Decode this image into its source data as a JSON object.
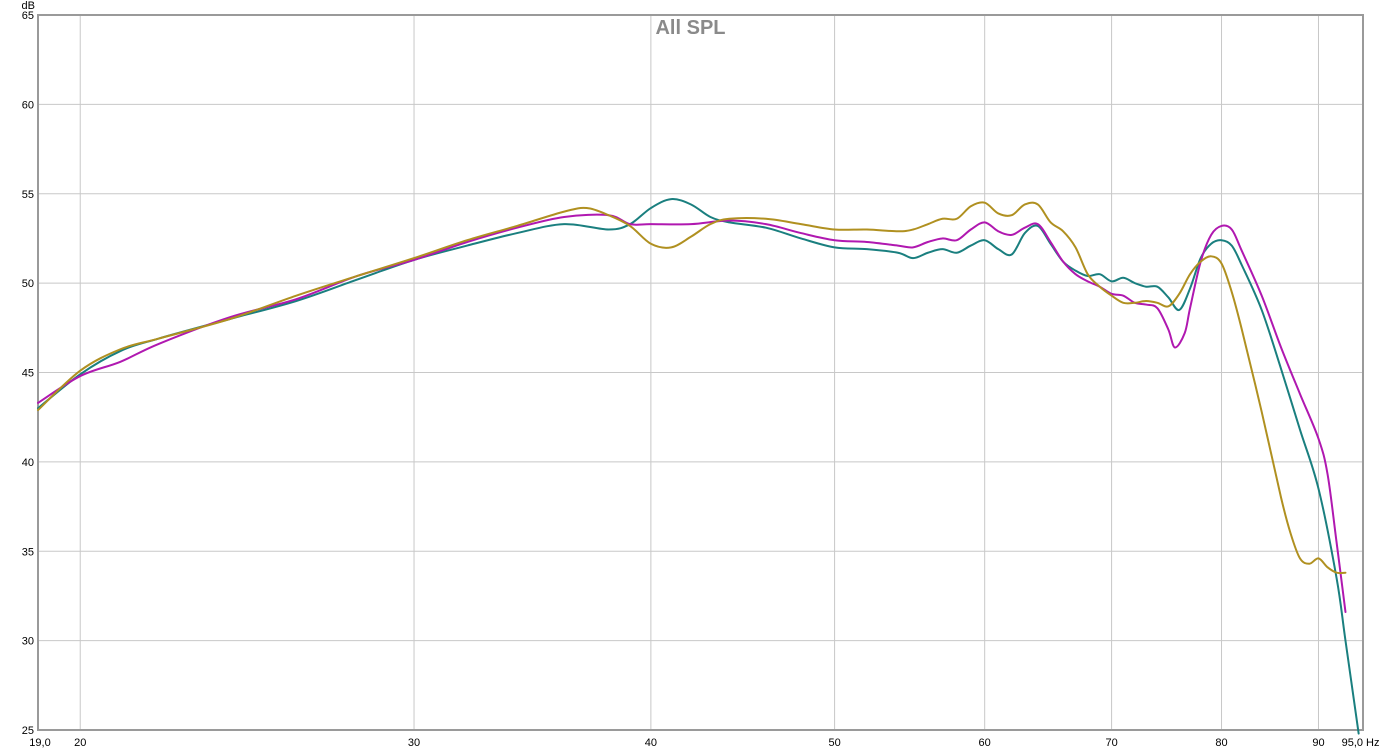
{
  "chart_data": {
    "type": "line",
    "title": "All SPL",
    "ylabel": "dB",
    "xlabel": "Hz",
    "x_scale": "log",
    "xlim": [
      19.0,
      95.0
    ],
    "ylim": [
      25,
      65
    ],
    "grid": true,
    "x_ticks": [
      {
        "value": 19.0,
        "label": "19,0"
      },
      {
        "value": 20,
        "label": "20"
      },
      {
        "value": 30,
        "label": "30"
      },
      {
        "value": 40,
        "label": "40"
      },
      {
        "value": 50,
        "label": "50"
      },
      {
        "value": 60,
        "label": "60"
      },
      {
        "value": 70,
        "label": "70"
      },
      {
        "value": 80,
        "label": "80"
      },
      {
        "value": 90,
        "label": "90"
      },
      {
        "value": 95.0,
        "label": "95,0"
      }
    ],
    "y_ticks": [
      25,
      30,
      35,
      40,
      45,
      50,
      55,
      60,
      65
    ],
    "series": [
      {
        "color": "#1a7f7f",
        "points": [
          [
            19.0,
            43.0
          ],
          [
            20,
            44.9
          ],
          [
            21,
            46.2
          ],
          [
            22,
            46.9
          ],
          [
            24,
            48.0
          ],
          [
            26,
            49.0
          ],
          [
            28,
            50.2
          ],
          [
            30,
            51.3
          ],
          [
            32,
            52.1
          ],
          [
            34,
            52.8
          ],
          [
            36,
            53.3
          ],
          [
            38,
            53.0
          ],
          [
            39,
            53.3
          ],
          [
            40,
            54.2
          ],
          [
            41,
            54.7
          ],
          [
            42,
            54.4
          ],
          [
            43,
            53.7
          ],
          [
            44,
            53.4
          ],
          [
            46,
            53.1
          ],
          [
            48,
            52.5
          ],
          [
            50,
            52.0
          ],
          [
            52,
            51.9
          ],
          [
            54,
            51.7
          ],
          [
            55,
            51.4
          ],
          [
            56,
            51.7
          ],
          [
            57,
            51.9
          ],
          [
            58,
            51.7
          ],
          [
            59,
            52.1
          ],
          [
            60,
            52.4
          ],
          [
            61,
            51.9
          ],
          [
            62,
            51.6
          ],
          [
            63,
            52.8
          ],
          [
            64,
            53.2
          ],
          [
            65,
            52.2
          ],
          [
            66,
            51.2
          ],
          [
            67,
            50.7
          ],
          [
            68,
            50.4
          ],
          [
            69,
            50.5
          ],
          [
            70,
            50.1
          ],
          [
            71,
            50.3
          ],
          [
            72,
            50.0
          ],
          [
            73,
            49.8
          ],
          [
            74,
            49.8
          ],
          [
            75,
            49.2
          ],
          [
            76,
            48.5
          ],
          [
            77,
            49.7
          ],
          [
            78,
            51.4
          ],
          [
            79,
            52.2
          ],
          [
            80,
            52.4
          ],
          [
            81,
            52.1
          ],
          [
            82,
            51.0
          ],
          [
            84,
            48.5
          ],
          [
            86,
            45.2
          ],
          [
            88,
            41.8
          ],
          [
            90,
            38.5
          ],
          [
            92,
            33.5
          ],
          [
            93,
            30.0
          ],
          [
            94.5,
            24.8
          ]
        ]
      },
      {
        "color": "#b018b0",
        "points": [
          [
            19.0,
            43.3
          ],
          [
            20,
            44.8
          ],
          [
            21,
            45.6
          ],
          [
            22,
            46.6
          ],
          [
            24,
            48.1
          ],
          [
            26,
            49.1
          ],
          [
            28,
            50.4
          ],
          [
            30,
            51.3
          ],
          [
            32,
            52.3
          ],
          [
            34,
            53.1
          ],
          [
            36,
            53.7
          ],
          [
            38,
            53.8
          ],
          [
            39,
            53.3
          ],
          [
            40,
            53.3
          ],
          [
            42,
            53.3
          ],
          [
            44,
            53.5
          ],
          [
            46,
            53.3
          ],
          [
            48,
            52.8
          ],
          [
            50,
            52.4
          ],
          [
            52,
            52.3
          ],
          [
            54,
            52.1
          ],
          [
            55,
            52.0
          ],
          [
            56,
            52.3
          ],
          [
            57,
            52.5
          ],
          [
            58,
            52.4
          ],
          [
            59,
            53.0
          ],
          [
            60,
            53.4
          ],
          [
            61,
            52.9
          ],
          [
            62,
            52.7
          ],
          [
            63,
            53.1
          ],
          [
            64,
            53.3
          ],
          [
            65,
            52.3
          ],
          [
            66,
            51.2
          ],
          [
            67,
            50.5
          ],
          [
            68,
            50.1
          ],
          [
            69,
            49.8
          ],
          [
            70,
            49.4
          ],
          [
            71,
            49.3
          ],
          [
            72,
            48.9
          ],
          [
            73,
            48.8
          ],
          [
            74,
            48.6
          ],
          [
            75,
            47.4
          ],
          [
            75.6,
            46.4
          ],
          [
            76.5,
            47.2
          ],
          [
            77,
            48.6
          ],
          [
            78,
            51.2
          ],
          [
            79,
            52.7
          ],
          [
            80,
            53.2
          ],
          [
            81,
            53.0
          ],
          [
            82,
            51.8
          ],
          [
            84,
            49.3
          ],
          [
            86,
            46.4
          ],
          [
            88,
            43.8
          ],
          [
            90,
            41.3
          ],
          [
            91,
            39.3
          ],
          [
            92,
            35.5
          ],
          [
            93,
            31.6
          ]
        ]
      },
      {
        "color": "#b09020",
        "points": [
          [
            19.0,
            42.9
          ],
          [
            20,
            45.1
          ],
          [
            21,
            46.3
          ],
          [
            22,
            46.9
          ],
          [
            24,
            48.0
          ],
          [
            26,
            49.3
          ],
          [
            28,
            50.4
          ],
          [
            30,
            51.4
          ],
          [
            32,
            52.4
          ],
          [
            34,
            53.2
          ],
          [
            36,
            54.0
          ],
          [
            37,
            54.2
          ],
          [
            38,
            53.8
          ],
          [
            39,
            53.2
          ],
          [
            40,
            52.2
          ],
          [
            41,
            52.0
          ],
          [
            42,
            52.6
          ],
          [
            43,
            53.3
          ],
          [
            44,
            53.6
          ],
          [
            46,
            53.6
          ],
          [
            48,
            53.3
          ],
          [
            50,
            53.0
          ],
          [
            52,
            53.0
          ],
          [
            54,
            52.9
          ],
          [
            55,
            53.0
          ],
          [
            56,
            53.3
          ],
          [
            57,
            53.6
          ],
          [
            58,
            53.6
          ],
          [
            59,
            54.3
          ],
          [
            60,
            54.5
          ],
          [
            61,
            53.9
          ],
          [
            62,
            53.8
          ],
          [
            63,
            54.4
          ],
          [
            64,
            54.4
          ],
          [
            65,
            53.4
          ],
          [
            66,
            52.9
          ],
          [
            67,
            52.0
          ],
          [
            68,
            50.5
          ],
          [
            69,
            49.8
          ],
          [
            70,
            49.3
          ],
          [
            71,
            48.9
          ],
          [
            72,
            48.9
          ],
          [
            73,
            49.0
          ],
          [
            74,
            48.9
          ],
          [
            75,
            48.7
          ],
          [
            76,
            49.4
          ],
          [
            77,
            50.5
          ],
          [
            78,
            51.2
          ],
          [
            79,
            51.5
          ],
          [
            80,
            51.1
          ],
          [
            81,
            49.5
          ],
          [
            82,
            47.4
          ],
          [
            84,
            42.8
          ],
          [
            86,
            38.0
          ],
          [
            87,
            36.0
          ],
          [
            88,
            34.6
          ],
          [
            89,
            34.3
          ],
          [
            90,
            34.6
          ],
          [
            91,
            34.1
          ],
          [
            92,
            33.8
          ],
          [
            93,
            33.8
          ]
        ]
      }
    ]
  }
}
